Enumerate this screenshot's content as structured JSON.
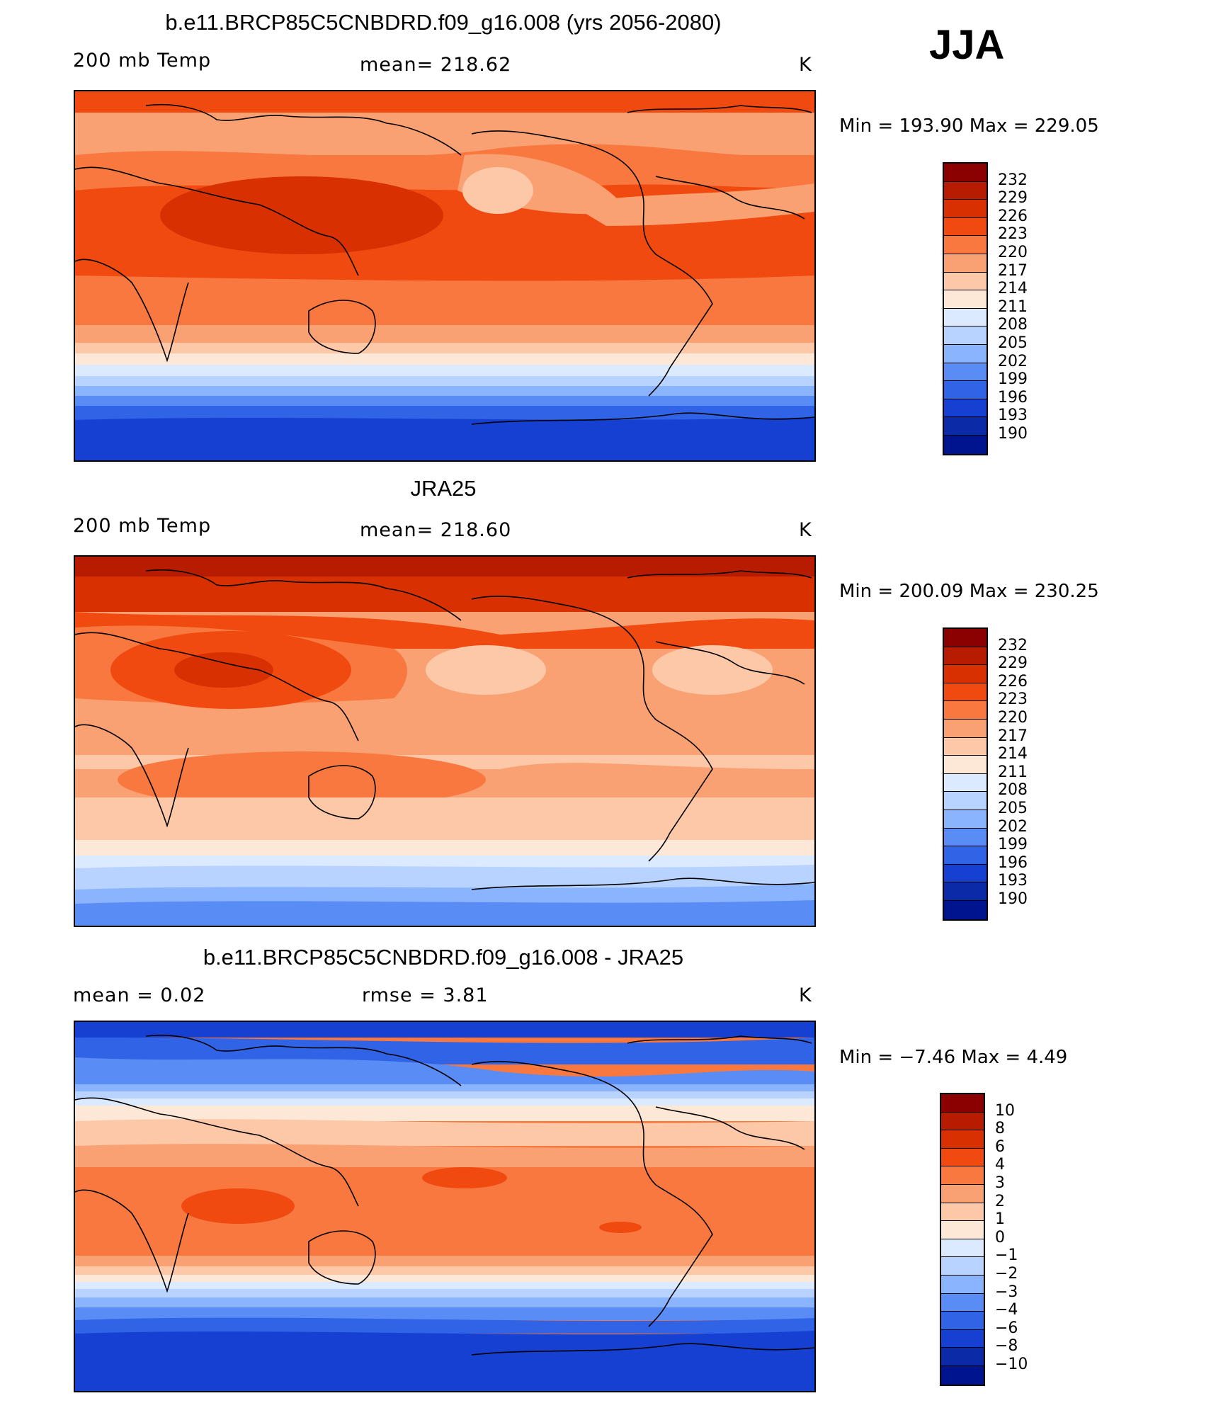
{
  "season": "JJA",
  "panels": [
    {
      "title": "b.e11.BRCP85C5CNBDRD.f09_g16.008 (yrs 2056-2080)",
      "variable": "200 mb Temp",
      "stat": "mean=  218.62",
      "units": "K",
      "minmax": "Min  =  193.90  Max  =  229.05",
      "legend_labels": [
        "232",
        "229",
        "226",
        "223",
        "220",
        "217",
        "214",
        "211",
        "208",
        "205",
        "202",
        "199",
        "196",
        "193",
        "190"
      ]
    },
    {
      "title": "JRA25",
      "variable": "200 mb Temp",
      "stat": "mean=  218.60",
      "units": "K",
      "minmax": "Min  =  200.09  Max  =  230.25",
      "legend_labels": [
        "232",
        "229",
        "226",
        "223",
        "220",
        "217",
        "214",
        "211",
        "208",
        "205",
        "202",
        "199",
        "196",
        "193",
        "190"
      ]
    },
    {
      "title": "b.e11.BRCP85C5CNBDRD.f09_g16.008 - JRA25",
      "variable": "mean  =      0.02",
      "stat": "rmse  =      3.81",
      "units": "K",
      "minmax": "Min  =     −7.46  Max  =      4.49",
      "legend_labels": [
        "10",
        "8",
        "6",
        "4",
        "3",
        "2",
        "1",
        "0",
        "−1",
        "−2",
        "−3",
        "−4",
        "−6",
        "−8",
        "−10"
      ]
    }
  ],
  "colors": {
    "palette": [
      "#8b0000",
      "#b71c00",
      "#d83000",
      "#f04a10",
      "#f87840",
      "#f9a173",
      "#fdc8a8",
      "#fde7d6",
      "#dbeaff",
      "#b8d3ff",
      "#8bb4ff",
      "#5a8cf5",
      "#3163e6",
      "#1540d2",
      "#0a2aa8",
      "#001490"
    ]
  }
}
